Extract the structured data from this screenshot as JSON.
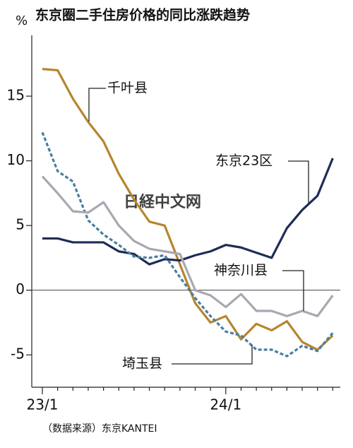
{
  "chart_data": {
    "type": "line",
    "title": "东京圈二手住房价格的同比涨跌趋势",
    "y_unit": "%",
    "source": "（数据来源）东京KANTEI",
    "watermark": "日経中文网",
    "categories": [
      "23/1",
      null,
      null,
      null,
      null,
      null,
      null,
      null,
      null,
      null,
      null,
      null,
      "24/1",
      null,
      null,
      null,
      null,
      null,
      null,
      null
    ],
    "series": [
      {
        "name": "千叶县",
        "color": "#b5862c",
        "dashed": false,
        "values": [
          17.1,
          17.0,
          14.8,
          13.0,
          11.5,
          9.0,
          7.0,
          5.3,
          5.0,
          2.0,
          -1.0,
          -2.5,
          -2.0,
          -3.8,
          -2.6,
          -3.1,
          -2.4,
          -4.0,
          -4.6,
          -3.5
        ]
      },
      {
        "name": "东京23区",
        "color": "#1e2c57",
        "dashed": false,
        "values": [
          4.0,
          4.0,
          3.7,
          3.7,
          3.7,
          3.0,
          2.8,
          2.0,
          2.4,
          2.3,
          2.7,
          3.0,
          3.5,
          3.3,
          2.9,
          2.5,
          4.8,
          6.2,
          7.3,
          10.2
        ]
      },
      {
        "name": "埼玉县",
        "color": "#4a7ea0",
        "dashed": true,
        "values": [
          12.2,
          9.2,
          8.4,
          5.4,
          4.3,
          3.5,
          2.6,
          2.5,
          2.7,
          1.0,
          -0.6,
          -2.0,
          -3.2,
          -3.5,
          -4.6,
          -4.6,
          -5.1,
          -4.3,
          -4.7,
          -3.3
        ]
      },
      {
        "name": "神奈川县",
        "color": "#aaa7b2",
        "dashed": false,
        "values": [
          8.8,
          7.5,
          6.1,
          6.0,
          6.8,
          5.0,
          3.8,
          3.2,
          3.0,
          2.8,
          0.0,
          -0.4,
          -1.3,
          -0.3,
          -1.6,
          -1.6,
          -2.0,
          -1.6,
          -2.0,
          -0.4
        ]
      }
    ],
    "ylim": [
      -7.5,
      19.7
    ],
    "yticks": [
      -5,
      0,
      5,
      10,
      15
    ],
    "zero_line": true
  }
}
